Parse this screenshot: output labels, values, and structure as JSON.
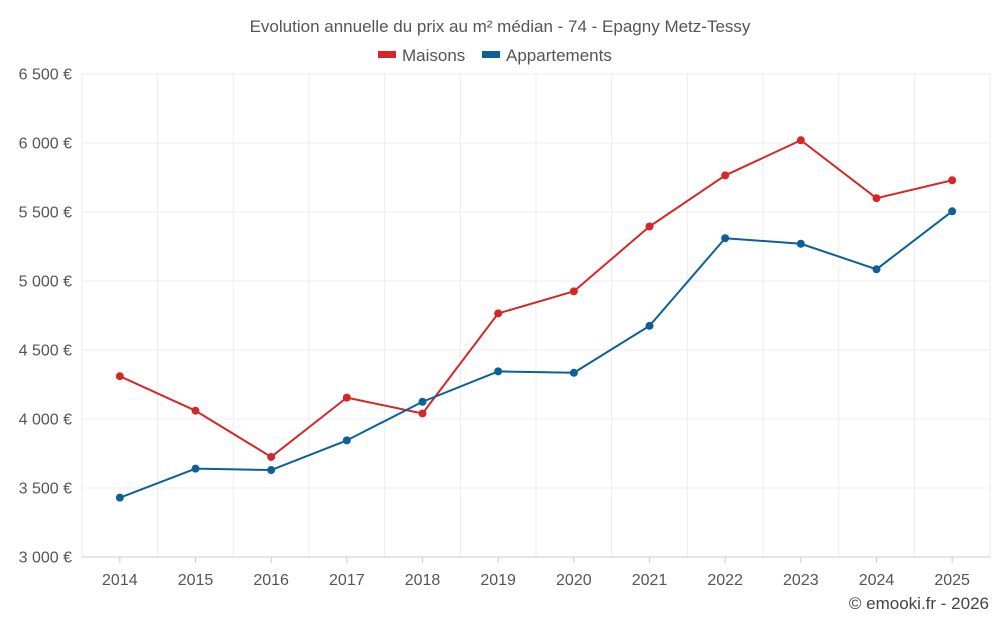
{
  "chart_data": {
    "type": "line",
    "title": "Evolution annuelle du prix au m² médian - 74 - Epagny Metz-Tessy",
    "categories": [
      "2014",
      "2015",
      "2016",
      "2017",
      "2018",
      "2019",
      "2020",
      "2021",
      "2022",
      "2023",
      "2024",
      "2025"
    ],
    "series": [
      {
        "name": "Maisons",
        "color": "#d62728",
        "values": [
          4310,
          4060,
          3725,
          4155,
          4040,
          4765,
          4925,
          5395,
          5765,
          6020,
          5600,
          5730
        ]
      },
      {
        "name": "Appartements",
        "color": "#0b6197",
        "values": [
          3430,
          3640,
          3630,
          3845,
          4125,
          4345,
          4335,
          4675,
          5310,
          5270,
          5085,
          5505
        ]
      }
    ],
    "yticks": [
      "3 000 €",
      "3 500 €",
      "4 000 €",
      "4 500 €",
      "5 000 €",
      "5 500 €",
      "6 000 €",
      "6 500 €"
    ],
    "ylim": [
      3000,
      6500
    ],
    "xlabel": "",
    "ylabel": "",
    "legend_position": "top-center",
    "grid": true
  },
  "credit": "© emooki.fr - 2026"
}
